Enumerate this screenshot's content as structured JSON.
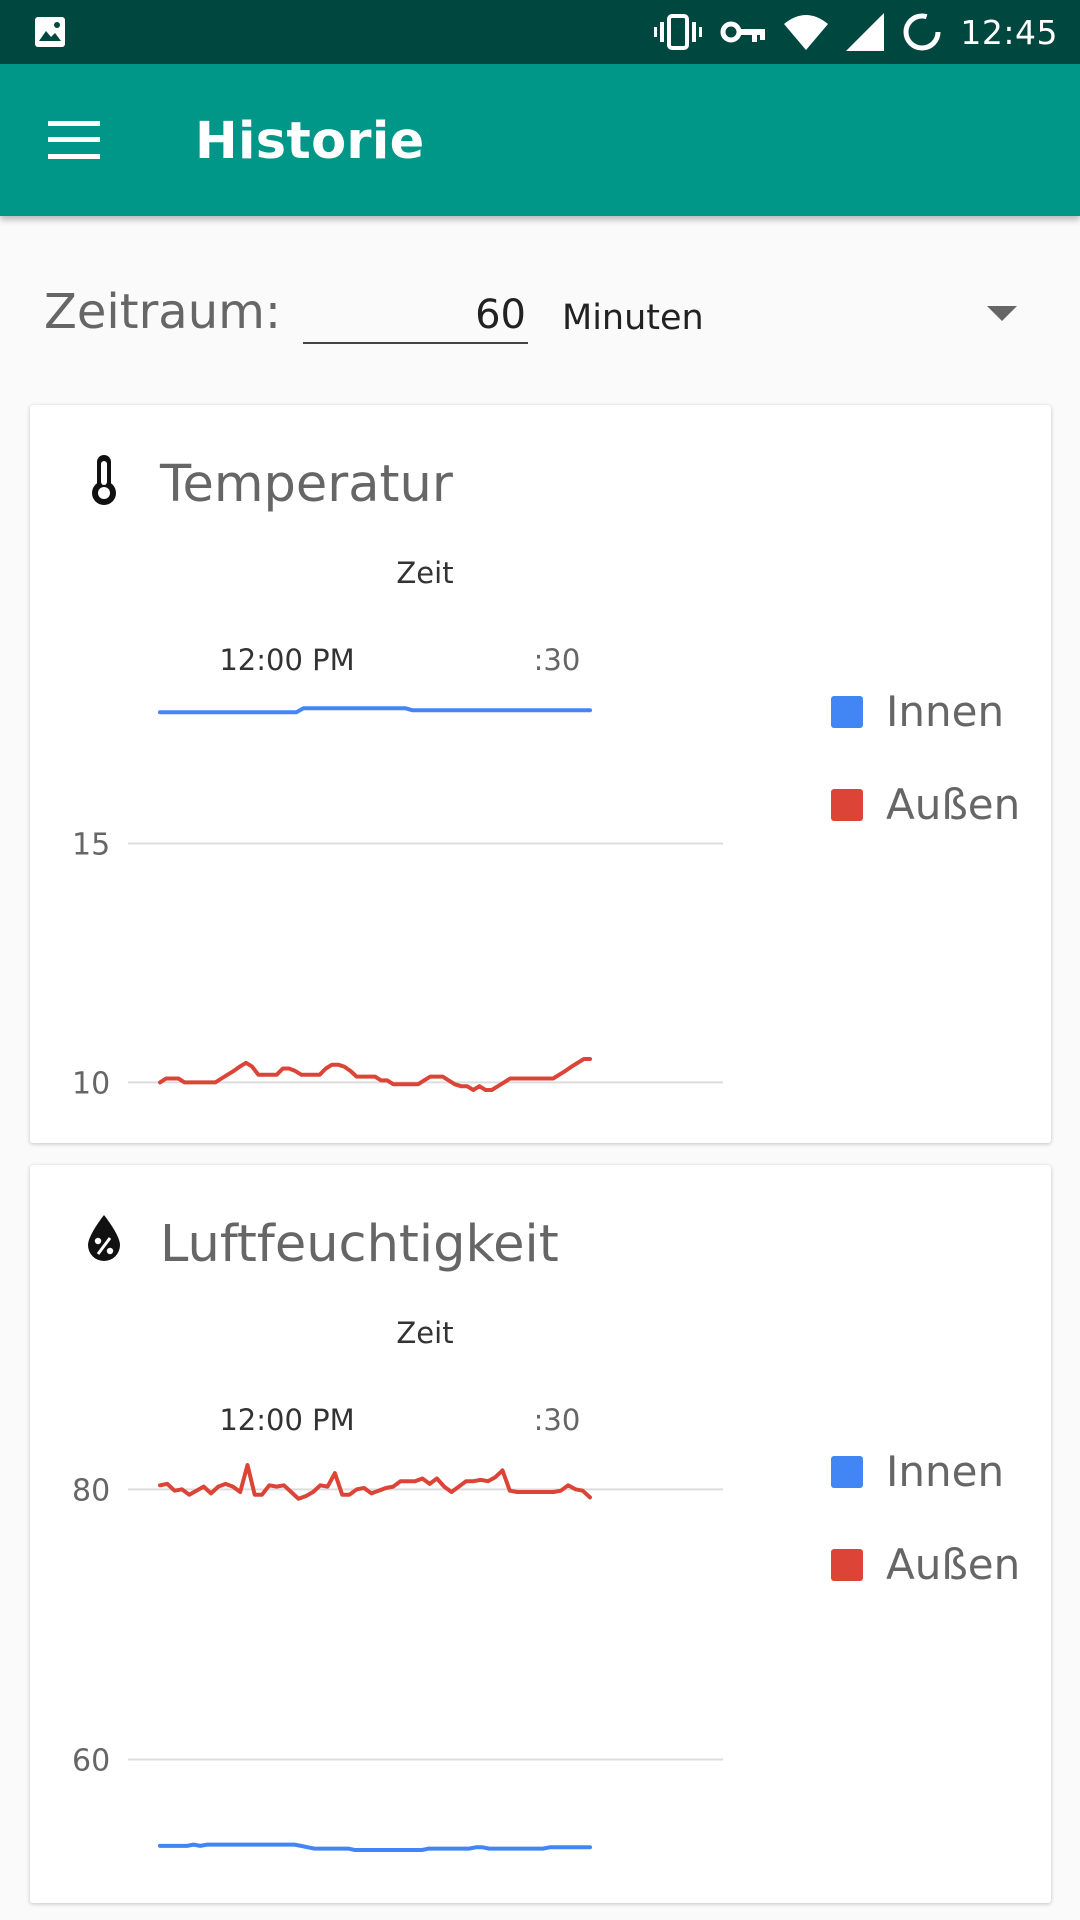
{
  "status_bar": {
    "time": "12:45",
    "icons": [
      "image-icon",
      "vibrate-icon",
      "vpn-key-icon",
      "wifi-icon",
      "signal-icon",
      "sync-icon"
    ]
  },
  "app_bar": {
    "menu_icon": "hamburger-menu-icon",
    "title": "Historie"
  },
  "period": {
    "label": "Zeitraum:",
    "value": "60",
    "unit": "Minuten"
  },
  "colors": {
    "status_bar": "#00483f",
    "app_bar": "#009688",
    "innen": "#4285f4",
    "aussen": "#db4437"
  },
  "cards": [
    {
      "title": "Temperatur",
      "icon": "thermometer-icon",
      "legend": [
        "Innen",
        "Außen"
      ],
      "chart_data": {
        "type": "line",
        "title": "Zeit",
        "xlabel": "Zeit",
        "ylabel": "",
        "x_tick_labels": [
          "12:00 PM",
          ":30"
        ],
        "y_ticks": [
          15,
          10
        ],
        "ylim": [
          9.84,
          17.9
        ],
        "grid": true,
        "legend_position": "right",
        "series": [
          {
            "name": "Innen",
            "values": [
              17.75,
              17.75,
              17.75,
              17.75,
              17.75,
              17.75,
              17.75,
              17.75,
              17.75,
              17.75,
              17.75,
              17.75,
              17.75,
              17.75,
              17.75,
              17.75,
              17.75,
              17.75,
              17.75,
              17.75,
              17.75,
              17.83,
              17.83,
              17.83,
              17.83,
              17.83,
              17.83,
              17.83,
              17.83,
              17.83,
              17.83,
              17.83,
              17.83,
              17.83,
              17.83,
              17.83,
              17.83,
              17.79,
              17.79,
              17.79,
              17.79,
              17.79,
              17.79,
              17.79,
              17.79,
              17.79,
              17.79,
              17.79,
              17.79,
              17.79,
              17.79,
              17.79,
              17.79,
              17.79,
              17.79,
              17.79,
              17.79,
              17.79,
              17.79,
              17.79,
              17.79,
              17.79,
              17.79,
              17.79
            ]
          },
          {
            "name": "Außen",
            "values": [
              10.0,
              10.08,
              10.08,
              10.08,
              10.0,
              10.0,
              10.0,
              10.0,
              10.0,
              10.0,
              10.08,
              10.16,
              10.24,
              10.33,
              10.41,
              10.33,
              10.16,
              10.16,
              10.16,
              10.16,
              10.29,
              10.29,
              10.24,
              10.16,
              10.16,
              10.16,
              10.16,
              10.29,
              10.37,
              10.37,
              10.33,
              10.24,
              10.12,
              10.12,
              10.12,
              10.12,
              10.04,
              10.04,
              9.96,
              9.96,
              9.96,
              9.96,
              9.96,
              10.04,
              10.12,
              10.12,
              10.12,
              10.04,
              9.96,
              9.92,
              9.92,
              9.84,
              9.92,
              9.84,
              9.84,
              9.92,
              10.0,
              10.08,
              10.08,
              10.08,
              10.08,
              10.08,
              10.08,
              10.08,
              10.08,
              10.16,
              10.24,
              10.33,
              10.41,
              10.49,
              10.49
            ]
          }
        ]
      }
    },
    {
      "title": "Luftfeuchtigkeit",
      "icon": "humidity-drop-icon",
      "legend": [
        "Innen",
        "Außen"
      ],
      "chart_data": {
        "type": "line",
        "title": "Zeit",
        "xlabel": "Zeit",
        "ylabel": "",
        "x_tick_labels": [
          "12:00 PM",
          ":30"
        ],
        "y_ticks": [
          80,
          60
        ],
        "ylim": [
          53.3,
          81.8
        ],
        "grid": true,
        "legend_position": "right",
        "series": [
          {
            "name": "Innen",
            "values": [
              53.6,
              53.6,
              53.6,
              53.6,
              53.6,
              53.7,
              53.6,
              53.7,
              53.7,
              53.7,
              53.7,
              53.7,
              53.7,
              53.7,
              53.7,
              53.7,
              53.7,
              53.7,
              53.7,
              53.7,
              53.7,
              53.6,
              53.5,
              53.4,
              53.4,
              53.4,
              53.4,
              53.4,
              53.4,
              53.3,
              53.3,
              53.3,
              53.3,
              53.3,
              53.3,
              53.3,
              53.3,
              53.3,
              53.3,
              53.3,
              53.4,
              53.4,
              53.4,
              53.4,
              53.4,
              53.4,
              53.4,
              53.5,
              53.5,
              53.4,
              53.4,
              53.4,
              53.4,
              53.4,
              53.4,
              53.4,
              53.4,
              53.4,
              53.5,
              53.5,
              53.5,
              53.5,
              53.5,
              53.5,
              53.5
            ]
          },
          {
            "name": "Außen",
            "values": [
              80.3,
              80.4,
              79.9,
              80.0,
              79.6,
              79.9,
              80.2,
              79.7,
              80.2,
              80.4,
              80.2,
              79.8,
              81.8,
              79.6,
              79.6,
              80.3,
              80.2,
              80.3,
              79.8,
              79.3,
              79.5,
              79.8,
              80.3,
              80.2,
              81.2,
              79.6,
              79.6,
              80.0,
              80.1,
              79.7,
              79.9,
              80.1,
              80.2,
              80.6,
              80.6,
              80.6,
              80.8,
              80.4,
              80.8,
              80.2,
              79.8,
              80.2,
              80.6,
              80.6,
              80.7,
              80.6,
              80.9,
              81.4,
              79.9,
              79.8,
              79.8,
              79.8,
              79.8,
              79.8,
              79.8,
              79.9,
              80.3,
              80.0,
              79.9,
              79.4
            ]
          }
        ]
      }
    }
  ]
}
